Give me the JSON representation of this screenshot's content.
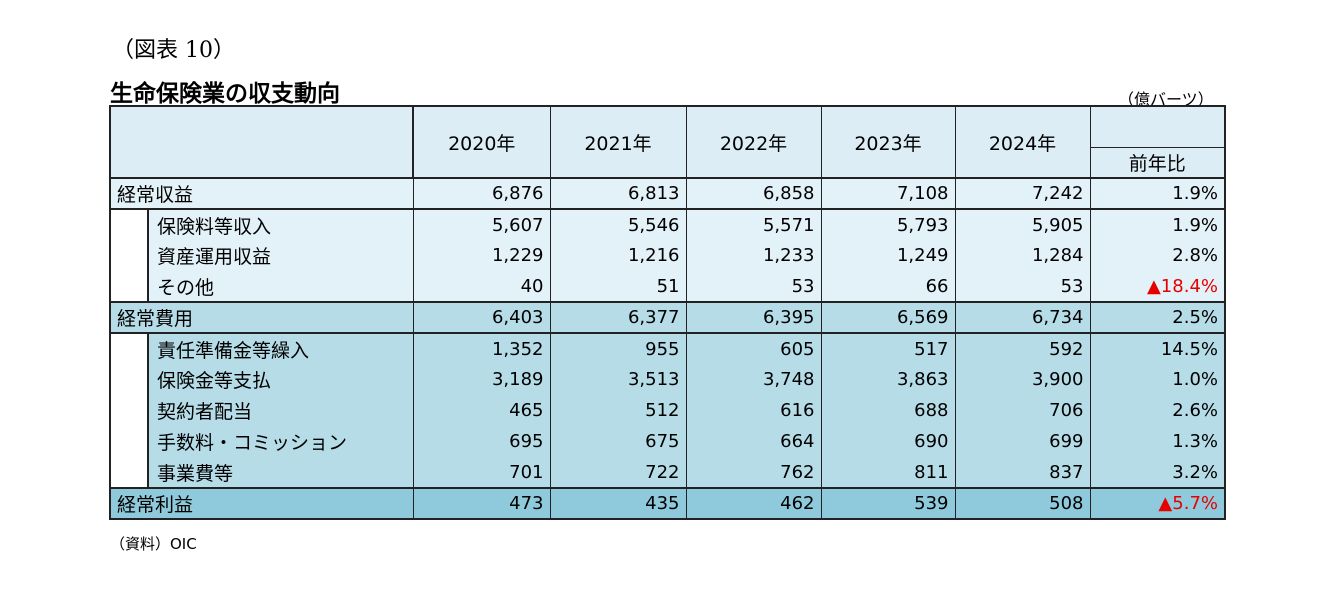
{
  "figure_no": "（図表 10）",
  "title": "生命保険業の収支動向",
  "unit": "（億バーツ）",
  "source": "（資料）OIC",
  "table": {
    "years": [
      "2020年",
      "2021年",
      "2022年",
      "2023年",
      "2024年"
    ],
    "yoy_header": "前年比",
    "sections": [
      {
        "row": {
          "label": "経常収益",
          "values": [
            "6,876",
            "6,813",
            "6,858",
            "7,108",
            "7,242"
          ],
          "yoy": "1.9%"
        },
        "items": [
          {
            "label": "保険料等収入",
            "values": [
              "5,607",
              "5,546",
              "5,571",
              "5,793",
              "5,905"
            ],
            "yoy": "1.9%"
          },
          {
            "label": "資産運用収益",
            "values": [
              "1,229",
              "1,216",
              "1,233",
              "1,249",
              "1,284"
            ],
            "yoy": "2.8%"
          },
          {
            "label": "その他",
            "values": [
              "40",
              "51",
              "53",
              "66",
              "53"
            ],
            "yoy": "▲18.4%"
          }
        ]
      },
      {
        "row": {
          "label": "経常費用",
          "values": [
            "6,403",
            "6,377",
            "6,395",
            "6,569",
            "6,734"
          ],
          "yoy": "2.5%"
        },
        "items": [
          {
            "label": "責任準備金等繰入",
            "values": [
              "1,352",
              "955",
              "605",
              "517",
              "592"
            ],
            "yoy": "14.5%"
          },
          {
            "label": "保険金等支払",
            "values": [
              "3,189",
              "3,513",
              "3,748",
              "3,863",
              "3,900"
            ],
            "yoy": "1.0%"
          },
          {
            "label": "契約者配当",
            "values": [
              "465",
              "512",
              "616",
              "688",
              "706"
            ],
            "yoy": "2.6%"
          },
          {
            "label": "手数料・コミッション",
            "values": [
              "695",
              "675",
              "664",
              "690",
              "699"
            ],
            "yoy": "1.3%"
          },
          {
            "label": "事業費等",
            "values": [
              "701",
              "722",
              "762",
              "811",
              "837"
            ],
            "yoy": "3.2%"
          }
        ]
      }
    ],
    "total": {
      "label": "経常利益",
      "values": [
        "473",
        "435",
        "462",
        "539",
        "508"
      ],
      "yoy": "▲5.7%"
    },
    "negative_color": "#e60000"
  }
}
